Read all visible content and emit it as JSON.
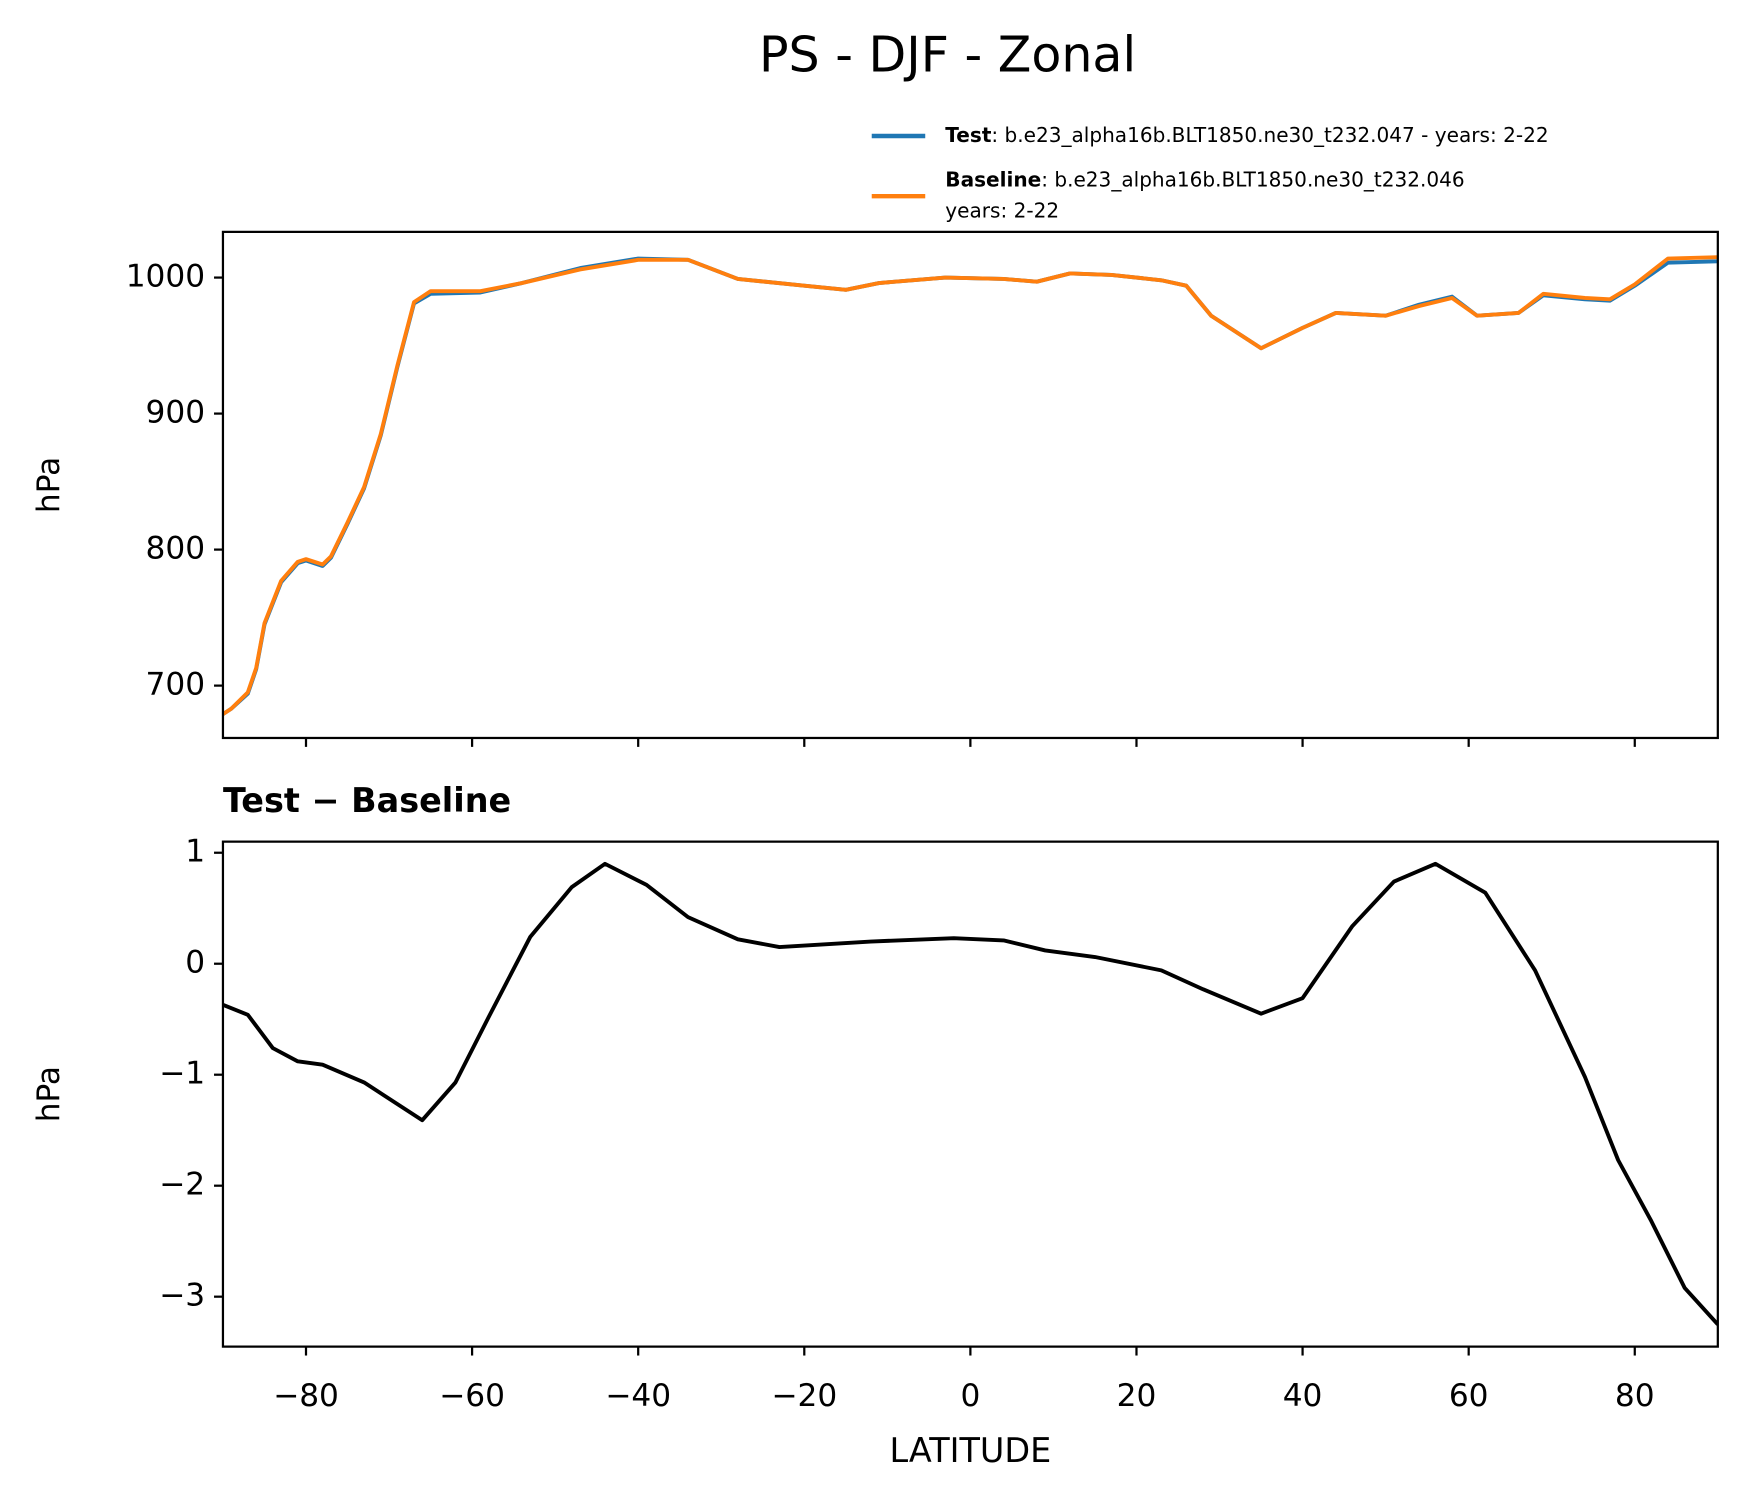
{
  "title": "PS - DJF - Zonal",
  "chart_data": [
    {
      "type": "line",
      "ylabel": "hPa",
      "x": [
        -90,
        -89,
        -87,
        -86,
        -85,
        -83,
        -81,
        -80,
        -78,
        -77,
        -75,
        -73,
        -71,
        -69,
        -67,
        -65,
        -59,
        -54,
        -47,
        -40,
        -34,
        -28,
        -20,
        -15,
        -11,
        -3,
        4,
        8,
        12,
        17,
        23,
        26,
        29,
        35,
        40,
        44,
        50,
        54,
        58,
        61,
        66,
        69,
        74,
        77,
        80,
        84,
        90
      ],
      "series": [
        {
          "name": "Test",
          "description": [
            ": b.e23_alpha16b.BLT1850.ne30_t232.047 - years: 2-22"
          ],
          "color": "#1f77b4",
          "values": [
            679,
            683,
            694,
            712,
            745,
            776,
            790,
            792,
            788,
            794,
            819,
            845,
            884,
            934,
            981,
            988,
            989,
            996,
            1007,
            1014,
            1013,
            999,
            994,
            991,
            996,
            1000,
            999,
            997,
            1003,
            1002,
            998,
            994,
            972,
            948,
            963,
            974,
            972,
            980,
            986,
            972,
            974,
            987,
            984,
            983,
            994,
            1011,
            1012
          ]
        },
        {
          "name": "Baseline",
          "description": [
            ": b.e23_alpha16b.BLT1850.ne30_t232.046",
            "years: 2-22"
          ],
          "color": "#ff7f0e",
          "values": [
            679,
            683,
            695,
            713,
            746,
            777,
            791,
            793,
            789,
            795,
            820,
            846,
            885,
            935,
            982,
            990,
            990,
            996,
            1006,
            1013,
            1013,
            999,
            994,
            991,
            996,
            1000,
            999,
            997,
            1003,
            1002,
            998,
            994,
            972,
            948,
            963,
            974,
            972,
            979,
            985,
            972,
            974,
            988,
            985,
            984,
            995,
            1014,
            1015
          ]
        }
      ],
      "xlim": [
        -90,
        90
      ],
      "xticks": [
        -80,
        -60,
        -40,
        -20,
        0,
        20,
        40,
        60,
        80
      ],
      "ylim": [
        661.5,
        1033.6
      ],
      "yticks": [
        700,
        800,
        900,
        1000
      ]
    },
    {
      "type": "line",
      "subtitle": "Test − Baseline",
      "xlabel": "LATITUDE",
      "ylabel": "hPa",
      "x": [
        -90,
        -87,
        -84,
        -81,
        -78,
        -73,
        -66,
        -62,
        -58,
        -53,
        -48,
        -44,
        -39,
        -34,
        -28,
        -23,
        -12,
        -2,
        4,
        9,
        15,
        23,
        28,
        35,
        40,
        46,
        51,
        56,
        62,
        68,
        74,
        78,
        82,
        86,
        90
      ],
      "series": [
        {
          "name": "Test − Baseline",
          "color": "#000000",
          "values": [
            -0.37,
            -0.46,
            -0.76,
            -0.88,
            -0.91,
            -1.07,
            -1.41,
            -1.07,
            -0.48,
            0.24,
            0.69,
            0.9,
            0.71,
            0.42,
            0.22,
            0.15,
            0.2,
            0.23,
            0.21,
            0.12,
            0.06,
            -0.06,
            -0.23,
            -0.45,
            -0.31,
            0.34,
            0.74,
            0.9,
            0.64,
            -0.06,
            -1.02,
            -1.77,
            -2.32,
            -2.92,
            -3.25
          ]
        }
      ],
      "xlim": [
        -90,
        90
      ],
      "xticks": [
        {
          "value": -80,
          "label": "−80"
        },
        {
          "value": -60,
          "label": "−60"
        },
        {
          "value": -40,
          "label": "−40"
        },
        {
          "value": -20,
          "label": "−20"
        },
        0,
        20,
        40,
        60,
        80
      ],
      "ylim": [
        -3.45,
        1.1
      ],
      "yticks": [
        {
          "value": -3,
          "label": "−3"
        },
        {
          "value": -2,
          "label": "−2"
        },
        {
          "value": -1,
          "label": "−1"
        },
        0,
        1
      ]
    }
  ]
}
